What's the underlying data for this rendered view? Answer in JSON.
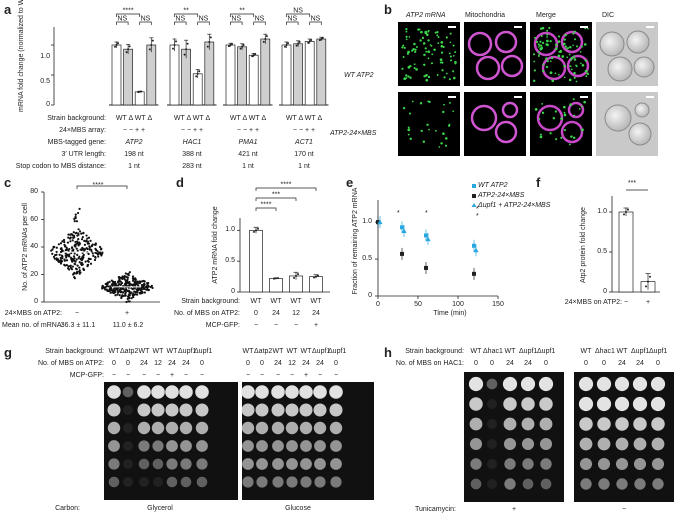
{
  "panel_labels": {
    "a": "a",
    "b": "b",
    "c": "c",
    "d": "d",
    "e": "e",
    "f": "f",
    "g": "g",
    "h": "h"
  },
  "panel_a": {
    "ylabel": "mRNA fold change (normalized to WT)",
    "yticks": [
      "0",
      "0.5",
      "1.0"
    ],
    "significance": [
      "****",
      "NS",
      "NS",
      "**",
      "NS",
      "NS",
      "**",
      "NS",
      "NS",
      "NS",
      "NS",
      "NS"
    ],
    "row_labels": [
      "Strain background:",
      "24×MBS array:",
      "MBS-tagged gene:",
      "3′ UTR length:",
      "Stop codon to MBS distance:"
    ],
    "genes": [
      {
        "name": "ATP2",
        "strain": "WT  Δ  WT  Δ",
        "array": "−   −   +   +",
        "utr": "198 nt",
        "dist": "1 nt"
      },
      {
        "name": "HAC1",
        "strain": "WT  Δ  WT  Δ",
        "array": "−   −   +   +",
        "utr": "388 nt",
        "dist": "283 nt"
      },
      {
        "name": "PMA1",
        "strain": "WT  Δ  WT  Δ",
        "array": "−   −   +   +",
        "utr": "421 nt",
        "dist": "1 nt"
      },
      {
        "name": "ACT1",
        "strain": "WT  Δ  WT  Δ",
        "array": "−   −   +   +",
        "utr": "170 nt",
        "dist": "1 nt"
      }
    ]
  },
  "panel_b": {
    "col_headers": [
      "ATP2 mRNA",
      "Mitochondria",
      "Merge",
      "DIC"
    ],
    "row_labels": [
      "WT ATP2",
      "ATP2-24×MBS"
    ]
  },
  "panel_c": {
    "ylabel": "No. of ATP2 mRNAs per cell",
    "yticks": [
      "0",
      "20",
      "40",
      "60",
      "80"
    ],
    "significance": "****",
    "row1_label": "24×MBS on ATP2:",
    "row1_values": [
      "−",
      "+"
    ],
    "row2_label": "Mean no. of mRNA:",
    "row2_values": [
      "36.3 ± 11.1",
      "11.0 ± 6.2"
    ]
  },
  "panel_d": {
    "ylabel": "ATP2 mRNA fold change",
    "yticks": [
      "0",
      "0.5",
      "1.0"
    ],
    "significance": [
      "****",
      "***",
      "****"
    ],
    "row_labels": [
      "Strain background:",
      "No. of MBS on ATP2:",
      "MCP-GFP:"
    ],
    "strain": [
      "WT",
      "WT",
      "WT",
      "WT"
    ],
    "mbs": [
      "0",
      "24",
      "12",
      "24"
    ],
    "mcp": [
      "−",
      "−",
      "−",
      "+"
    ]
  },
  "panel_e": {
    "ylabel": "Fraction of remaining ATP2 mRNA",
    "xlabel": "Time (min)",
    "xticks": [
      "0",
      "50",
      "100",
      "150"
    ],
    "yticks": [
      "0",
      "0.5",
      "1.0"
    ],
    "legend": [
      "WT ATP2",
      "ATP2-24×MBS",
      "Δupf1 + ATP2-24×MBS"
    ],
    "stars": [
      "*",
      "*",
      "*",
      "*"
    ]
  },
  "panel_f": {
    "ylabel": "Atp2 protein fold change",
    "yticks": [
      "0",
      "0.5",
      "1.0"
    ],
    "significance": "***",
    "row_label": "24×MBS on ATP2:",
    "row_values": [
      "−",
      "+"
    ]
  },
  "panel_g": {
    "row_labels": [
      "Strain background:",
      "No. of MBS on ATP2:",
      "MCP-GFP:"
    ],
    "strain_glycerol": [
      "WT",
      "Δatp2",
      "WT",
      "WT",
      "WT",
      "Δupf1",
      "Δupf1"
    ],
    "strain_glucose": [
      "WT",
      "Δatp2",
      "WT",
      "WT",
      "WT",
      "Δupf1",
      "Δupf1"
    ],
    "mbs": [
      "0",
      "0",
      "24",
      "12",
      "24",
      "24",
      "0"
    ],
    "mcp": [
      "−",
      "−",
      "−",
      "−",
      "+",
      "−",
      "−"
    ],
    "carbon_label": "Carbon:",
    "carbon_values": [
      "Glycerol",
      "Glucose"
    ]
  },
  "panel_h": {
    "row_labels": [
      "Strain background:",
      "No. of MBS on HAC1:"
    ],
    "strain": [
      "WT",
      "Δhac1",
      "WT",
      "Δupf1",
      "Δupf1"
    ],
    "mbs": [
      "0",
      "0",
      "24",
      "24",
      "0"
    ],
    "tunicamycin_label": "Tunicamycin:",
    "tunicamycin_values": [
      "+",
      "−"
    ]
  },
  "chart_data": [
    {
      "type": "bar",
      "panel": "a",
      "ylabel": "mRNA fold change (normalized to WT)",
      "ylim": [
        0,
        1.3
      ],
      "categories": [
        "ATP2 WT−",
        "ATP2 Δ−",
        "ATP2 WT+",
        "ATP2 Δ+",
        "HAC1 WT−",
        "HAC1 Δ−",
        "HAC1 WT+",
        "HAC1 Δ+",
        "PMA1 WT−",
        "PMA1 Δ−",
        "PMA1 WT+",
        "PMA1 Δ+",
        "ACT1 WT−",
        "ACT1 Δ−",
        "ACT1 WT+",
        "ACT1 Δ+"
      ],
      "values": [
        1.0,
        0.93,
        0.22,
        1.0,
        1.0,
        0.93,
        0.52,
        1.05,
        1.0,
        0.97,
        0.83,
        1.1,
        1.0,
        1.02,
        1.06,
        1.1
      ],
      "errors": [
        0.05,
        0.08,
        0.01,
        0.12,
        0.1,
        0.15,
        0.07,
        0.13,
        0.03,
        0.05,
        0.03,
        0.08,
        0.05,
        0.05,
        0.04,
        0.03
      ],
      "colors": [
        "#ffffff",
        "#cfcfcf",
        "#ffffff",
        "#cfcfcf",
        "#ffffff",
        "#cfcfcf",
        "#ffffff",
        "#cfcfcf",
        "#ffffff",
        "#cfcfcf",
        "#ffffff",
        "#cfcfcf",
        "#ffffff",
        "#cfcfcf",
        "#ffffff",
        "#cfcfcf"
      ]
    },
    {
      "type": "scatter",
      "panel": "c",
      "ylabel": "No. of ATP2 mRNAs per cell",
      "ylim": [
        0,
        80
      ],
      "categories": [
        "−",
        "+"
      ],
      "means": [
        36.3,
        11.0
      ],
      "sd": [
        11.1,
        6.2
      ]
    },
    {
      "type": "bar",
      "panel": "d",
      "ylabel": "ATP2 mRNA fold change",
      "ylim": [
        0,
        1.2
      ],
      "categories": [
        "WT 0 −",
        "WT 24 −",
        "WT 12 −",
        "WT 24 +"
      ],
      "values": [
        1.0,
        0.22,
        0.26,
        0.25
      ],
      "errors": [
        0.05,
        0.01,
        0.06,
        0.03
      ]
    },
    {
      "type": "line",
      "panel": "e",
      "xlabel": "Time (min)",
      "ylabel": "Fraction of remaining ATP2 mRNA",
      "xlim": [
        0,
        150
      ],
      "ylim": [
        0,
        1.3
      ],
      "series": [
        {
          "name": "WT ATP2",
          "color": "#29a8e0",
          "x": [
            0,
            30,
            60,
            120
          ],
          "y": [
            1.0,
            0.93,
            0.82,
            0.68
          ]
        },
        {
          "name": "ATP2-24×MBS",
          "color": "#222222",
          "x": [
            0,
            30,
            60,
            120
          ],
          "y": [
            1.0,
            0.57,
            0.38,
            0.3
          ]
        },
        {
          "name": "Δupf1 + ATP2-24×MBS",
          "color": "#29a8e0",
          "x": [
            0,
            30,
            60,
            120
          ],
          "y": [
            1.0,
            0.88,
            0.77,
            0.62
          ]
        }
      ]
    },
    {
      "type": "bar",
      "panel": "f",
      "ylabel": "Atp2 protein fold change",
      "ylim": [
        0,
        1.2
      ],
      "categories": [
        "−",
        "+"
      ],
      "values": [
        1.0,
        0.13
      ],
      "errors": [
        0.05,
        0.1
      ]
    }
  ]
}
